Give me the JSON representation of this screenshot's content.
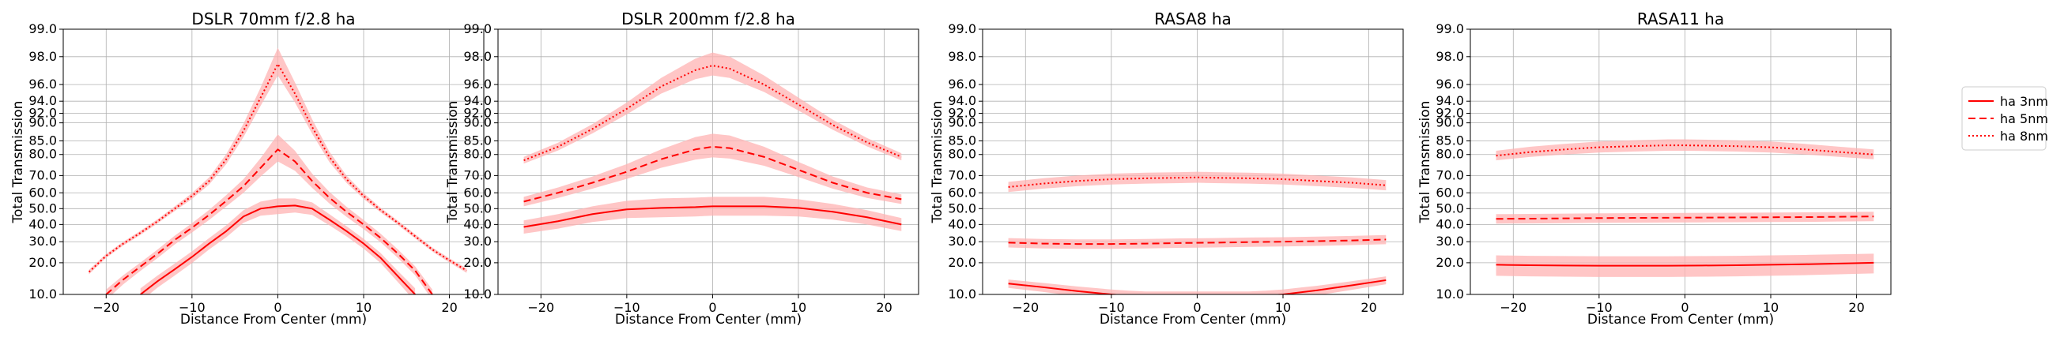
{
  "colors": {
    "line": "#ff0000",
    "band": "#ffb3b3",
    "grid": "#b0b0b0",
    "axis": "#000000"
  },
  "legend": {
    "placement": "right",
    "entries": [
      {
        "label": "ha 3nm",
        "style": "solid"
      },
      {
        "label": "ha 5nm",
        "style": "dashed"
      },
      {
        "label": "ha 8nm",
        "style": "dotted"
      }
    ]
  },
  "chart_data": [
    {
      "type": "line",
      "title": "DSLR 70mm f/2.8 ha",
      "xlabel": "Distance From Center (mm)",
      "ylabel": "Total Transmission",
      "xlim": [
        -25,
        24
      ],
      "ylim": [
        10,
        99
      ],
      "yscale": "logit",
      "grid": true,
      "xticks": [
        -20,
        -10,
        0,
        10,
        20
      ],
      "yticks": [
        10.0,
        20.0,
        30.0,
        40.0,
        50.0,
        60.0,
        70.0,
        80.0,
        85.0,
        90.0,
        92.0,
        94.0,
        96.0,
        98.0,
        99.0
      ],
      "series": [
        {
          "name": "ha 3nm",
          "style": "solid",
          "x": [
            -16,
            -14,
            -12,
            -10,
            -8,
            -6,
            -4,
            -2,
            0,
            2,
            4,
            6,
            8,
            10,
            12,
            14,
            16
          ],
          "y": [
            10,
            13.5,
            17.5,
            22.5,
            29,
            36,
            45,
            50,
            51.5,
            52,
            50,
            43,
            36,
            29,
            22,
            15,
            10
          ],
          "band": [
            1.5,
            1.8,
            2.2,
            2.6,
            3,
            3.5,
            4,
            4.5,
            5,
            4.5,
            4,
            3.5,
            3,
            2.6,
            2.2,
            1.8,
            1.5
          ]
        },
        {
          "name": "ha 5nm",
          "style": "dashed",
          "x": [
            -20,
            -18,
            -16,
            -14,
            -12,
            -10,
            -8,
            -6,
            -4,
            -2,
            0,
            2,
            4,
            6,
            8,
            10,
            12,
            14,
            16,
            18
          ],
          "y": [
            10,
            14,
            18.5,
            24,
            31,
            38,
            46,
            55,
            64,
            74,
            82,
            77,
            67,
            57,
            48,
            40,
            32,
            24,
            17,
            10
          ],
          "band": [
            1.2,
            1.4,
            1.6,
            2,
            2.4,
            2.8,
            3.2,
            3.6,
            4,
            4.5,
            5,
            4.5,
            4,
            3.6,
            3.2,
            2.8,
            2.4,
            2,
            1.6,
            1.2
          ]
        },
        {
          "name": "ha 8nm",
          "style": "dotted",
          "x": [
            -22,
            -20,
            -18,
            -16,
            -14,
            -12,
            -10,
            -8,
            -6,
            -4,
            -2,
            0,
            2,
            4,
            6,
            8,
            10,
            12,
            14,
            16,
            18,
            20,
            22
          ],
          "y": [
            16.5,
            23,
            29,
            35,
            42,
            50,
            58,
            67,
            78,
            88,
            94.5,
            97.6,
            95,
            89,
            79,
            68,
            58,
            49,
            41,
            33,
            26,
            21,
            17
          ],
          "band": [
            0.8,
            0.9,
            1,
            1.2,
            1.3,
            1.5,
            1.8,
            2,
            2.2,
            1.8,
            1.2,
            0.8,
            1.2,
            1.8,
            2.2,
            2,
            1.8,
            1.5,
            1.3,
            1.2,
            1,
            0.9,
            0.8
          ]
        }
      ]
    },
    {
      "type": "line",
      "title": "DSLR 200mm f/2.8 ha",
      "xlabel": "Distance From Center (mm)",
      "ylabel": "Total Transmission",
      "xlim": [
        -25,
        24
      ],
      "ylim": [
        10,
        99
      ],
      "yscale": "logit",
      "grid": true,
      "xticks": [
        -20,
        -10,
        0,
        10,
        20
      ],
      "yticks": [
        10.0,
        20.0,
        30.0,
        40.0,
        50.0,
        60.0,
        70.0,
        80.0,
        85.0,
        90.0,
        92.0,
        94.0,
        96.0,
        98.0,
        99.0
      ],
      "series": [
        {
          "name": "ha 3nm",
          "style": "solid",
          "x": [
            -22,
            -18,
            -14,
            -10,
            -6,
            -2,
            0,
            2,
            6,
            10,
            14,
            18,
            22
          ],
          "y": [
            38.5,
            42,
            46.5,
            49.5,
            50.5,
            51,
            51.5,
            51.5,
            51.5,
            50.5,
            48,
            44.5,
            40
          ],
          "band": [
            4,
            4.5,
            5,
            5.5,
            6,
            6,
            6,
            6,
            6,
            5.5,
            5,
            4.5,
            4
          ]
        },
        {
          "name": "ha 5nm",
          "style": "dashed",
          "x": [
            -22,
            -18,
            -14,
            -10,
            -6,
            -2,
            0,
            2,
            6,
            10,
            14,
            18,
            22
          ],
          "y": [
            54.5,
            60,
            66,
            72,
            78,
            82,
            83,
            82.5,
            79,
            73,
            66,
            60,
            56
          ],
          "band": [
            3,
            3.2,
            3.5,
            3.8,
            4,
            4.2,
            4.2,
            4.2,
            4,
            3.8,
            3.5,
            3.2,
            3
          ]
        },
        {
          "name": "ha 8nm",
          "style": "dotted",
          "x": [
            -22,
            -18,
            -14,
            -10,
            -6,
            -2,
            0,
            2,
            6,
            10,
            14,
            18,
            22
          ],
          "y": [
            77.5,
            83,
            88.5,
            92.8,
            95.8,
            97.2,
            97.5,
            97.3,
            96,
            93.5,
            89.5,
            84.5,
            79
          ],
          "band": [
            1.5,
            1.4,
            1.2,
            1,
            0.8,
            0.7,
            0.7,
            0.7,
            0.8,
            1,
            1.2,
            1.4,
            1.5
          ]
        }
      ]
    },
    {
      "type": "line",
      "title": "RASA8 ha",
      "xlabel": "Distance From Center (mm)",
      "ylabel": "Total Transmission",
      "xlim": [
        -25,
        24
      ],
      "ylim": [
        10,
        99
      ],
      "yscale": "logit",
      "grid": true,
      "xticks": [
        -20,
        -10,
        0,
        10,
        20
      ],
      "yticks": [
        10.0,
        20.0,
        30.0,
        40.0,
        50.0,
        60.0,
        70.0,
        80.0,
        85.0,
        90.0,
        92.0,
        94.0,
        96.0,
        98.0,
        99.0
      ],
      "series": [
        {
          "name": "ha 3nm",
          "style": "solid",
          "x": [
            -22,
            -18,
            -14,
            -10,
            -8,
            -6,
            6,
            8,
            10,
            14,
            18,
            22
          ],
          "y": [
            12.8,
            11.8,
            10.8,
            10.0,
            9.7,
            9.5,
            9.5,
            9.7,
            10.0,
            11.0,
            12.3,
            13.8
          ],
          "band": [
            1.2,
            1.2,
            1.2,
            1.2,
            1.2,
            1.2,
            1.2,
            1.2,
            1.2,
            1.2,
            1.2,
            1.2
          ]
        },
        {
          "name": "ha 5nm",
          "style": "dashed",
          "x": [
            -22,
            -18,
            -14,
            -10,
            -6,
            -2,
            2,
            6,
            10,
            14,
            18,
            22
          ],
          "y": [
            29.5,
            29,
            28.8,
            28.8,
            29,
            29.3,
            29.5,
            29.8,
            30,
            30.3,
            30.7,
            31.2
          ],
          "band": [
            2.5,
            2.5,
            2.5,
            2.5,
            2.5,
            2.5,
            2.5,
            2.5,
            2.5,
            2.5,
            2.5,
            2.5
          ]
        },
        {
          "name": "ha 8nm",
          "style": "dotted",
          "x": [
            -22,
            -18,
            -14,
            -10,
            -6,
            -2,
            0,
            2,
            6,
            10,
            14,
            18,
            22
          ],
          "y": [
            63.5,
            65.5,
            67,
            68,
            68.5,
            68.8,
            69,
            68.8,
            68.5,
            68,
            67,
            66,
            64.5
          ],
          "band": [
            3,
            3,
            3,
            3,
            3,
            3,
            3,
            3,
            3,
            3,
            3,
            3,
            3
          ]
        }
      ]
    },
    {
      "type": "line",
      "title": "RASA11 ha",
      "xlabel": "Distance From Center (mm)",
      "ylabel": "Total Transmission",
      "xlim": [
        -25,
        24
      ],
      "ylim": [
        10,
        99
      ],
      "yscale": "logit",
      "grid": true,
      "xticks": [
        -20,
        -10,
        0,
        10,
        20
      ],
      "yticks": [
        10.0,
        20.0,
        30.0,
        40.0,
        50.0,
        60.0,
        70.0,
        80.0,
        85.0,
        90.0,
        92.0,
        94.0,
        96.0,
        98.0,
        99.0
      ],
      "series": [
        {
          "name": "ha 3nm",
          "style": "solid",
          "x": [
            -22,
            -18,
            -14,
            -10,
            -6,
            -2,
            2,
            6,
            10,
            14,
            18,
            22
          ],
          "y": [
            19.2,
            19,
            18.9,
            18.8,
            18.8,
            18.8,
            18.9,
            19,
            19.2,
            19.4,
            19.7,
            20
          ],
          "band": [
            4,
            4,
            4,
            4,
            4,
            4,
            4,
            4,
            4,
            4,
            4,
            4
          ]
        },
        {
          "name": "ha 5nm",
          "style": "dashed",
          "x": [
            -22,
            -18,
            -14,
            -10,
            -6,
            -2,
            2,
            6,
            10,
            14,
            18,
            22
          ],
          "y": [
            43.5,
            43.6,
            43.8,
            44,
            44.1,
            44.2,
            44.3,
            44.4,
            44.5,
            44.6,
            44.8,
            45
          ],
          "band": [
            3,
            3,
            3,
            3,
            3,
            3,
            3,
            3,
            3,
            3,
            3,
            3
          ]
        },
        {
          "name": "ha 8nm",
          "style": "dotted",
          "x": [
            -22,
            -18,
            -14,
            -10,
            -6,
            -2,
            0,
            2,
            6,
            10,
            14,
            18,
            22
          ],
          "y": [
            79.5,
            81,
            82,
            82.8,
            83.2,
            83.5,
            83.5,
            83.4,
            83.2,
            82.8,
            82,
            81,
            80
          ],
          "band": [
            2,
            2,
            2,
            2,
            2,
            2,
            2,
            2,
            2,
            2,
            2,
            2,
            2
          ]
        }
      ]
    }
  ]
}
